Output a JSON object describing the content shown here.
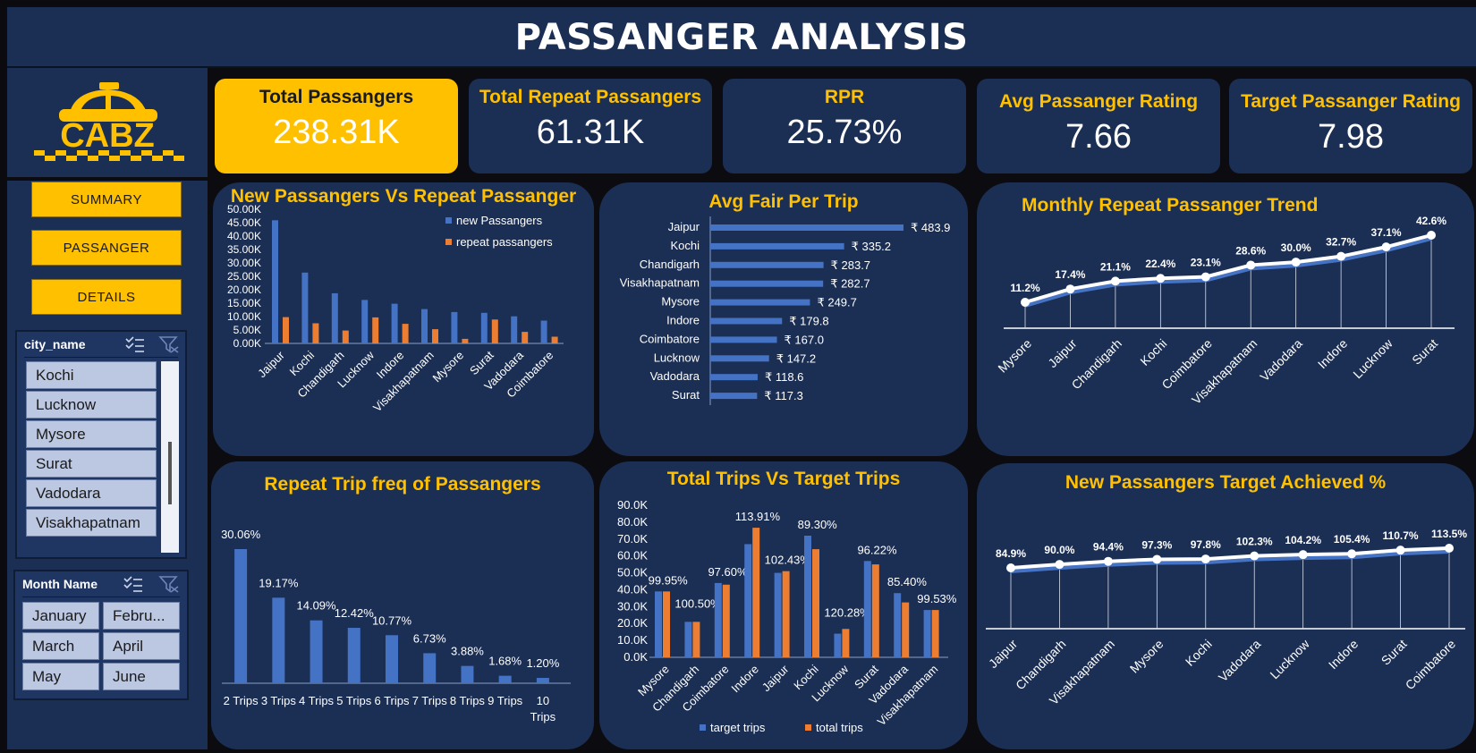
{
  "page": {
    "title": "PASSANGER ANALYSIS"
  },
  "logo": {
    "brand": "CABZ"
  },
  "nav": {
    "summary": "SUMMARY",
    "passanger": "PASSANGER",
    "details": "DETAILS"
  },
  "slicers": {
    "city": {
      "title": "city_name",
      "items": [
        "Kochi",
        "Lucknow",
        "Mysore",
        "Surat",
        "Vadodara",
        "Visakhapatnam"
      ]
    },
    "month": {
      "title": "Month Name",
      "items": [
        "January",
        "Febru...",
        "March",
        "April",
        "May",
        "June"
      ]
    }
  },
  "kpis": [
    {
      "label": "Total Passangers",
      "value": "238.31K"
    },
    {
      "label": "Total Repeat Passangers",
      "value": "61.31K"
    },
    {
      "label": "RPR",
      "value": "25.73%"
    },
    {
      "label": "Avg Passanger Rating",
      "value": "7.66"
    },
    {
      "label": "Target Passanger Rating",
      "value": "7.98"
    }
  ],
  "colors": {
    "navy": "#1b2e53",
    "gold": "#ffc000",
    "blue": "#4472c4",
    "orange": "#ed7d31"
  },
  "chart_data": [
    {
      "id": "new_vs_repeat",
      "type": "bar",
      "title": "New Passangers Vs Repeat Passanger",
      "categories": [
        "Jaipur",
        "Kochi",
        "Chandigarh",
        "Lucknow",
        "Indore",
        "Visakhapatnam",
        "Mysore",
        "Surat",
        "Vadodara",
        "Coimbatore"
      ],
      "series": [
        {
          "name": "new Passangers",
          "values": [
            45900,
            26400,
            18700,
            16200,
            14800,
            12800,
            11700,
            11400,
            10100,
            8500
          ]
        },
        {
          "name": "repeat passangers",
          "values": [
            9800,
            7500,
            4800,
            9700,
            7300,
            5300,
            1700,
            8900,
            4300,
            2500
          ]
        }
      ],
      "yticks": [
        "50.00K",
        "45.00K",
        "40.00K",
        "35.00K",
        "30.00K",
        "25.00K",
        "20.00K",
        "15.00K",
        "10.00K",
        "5.00K",
        "0.00K"
      ],
      "ylim": [
        0,
        50000
      ],
      "legend": "top-right"
    },
    {
      "id": "avg_fare",
      "type": "bar",
      "title": "Avg Fair Per Trip",
      "categories": [
        "Jaipur",
        "Kochi",
        "Chandigarh",
        "Visakhapatnam",
        "Mysore",
        "Indore",
        "Coimbatore",
        "Lucknow",
        "Vadodara",
        "Surat"
      ],
      "values": [
        483.9,
        335.2,
        283.7,
        282.7,
        249.7,
        179.8,
        167.0,
        147.2,
        118.6,
        117.3
      ],
      "labels": [
        "₹ 483.9",
        "₹ 335.2",
        "₹ 283.7",
        "₹ 282.7",
        "₹ 249.7",
        "₹ 179.8",
        "₹ 167.0",
        "₹ 147.2",
        "₹ 118.6",
        "₹ 117.3"
      ]
    },
    {
      "id": "monthly_repeat",
      "type": "line",
      "title": "Monthly Repeat Passanger Trend",
      "categories": [
        "Mysore",
        "Jaipur",
        "Chandigarh",
        "Kochi",
        "Coimbatore",
        "Visakhapatnam",
        "Vadodara",
        "Indore",
        "Lucknow",
        "Surat"
      ],
      "values": [
        11.2,
        17.4,
        21.1,
        22.4,
        23.1,
        28.6,
        30.0,
        32.7,
        37.1,
        42.6
      ],
      "labels": [
        "11.2%",
        "17.4%",
        "21.1%",
        "22.4%",
        "23.1%",
        "28.6%",
        "30.0%",
        "32.7%",
        "37.1%",
        "42.6%"
      ]
    },
    {
      "id": "repeat_freq",
      "type": "bar",
      "title": "Repeat Trip freq of Passangers",
      "categories": [
        "2 Trips",
        "3 Trips",
        "4 Trips",
        "5 Trips",
        "6 Trips",
        "7 Trips",
        "8 Trips",
        "9 Trips",
        "10 Trips"
      ],
      "values": [
        30.06,
        19.17,
        14.09,
        12.42,
        10.77,
        6.73,
        3.88,
        1.68,
        1.2
      ],
      "labels": [
        "30.06%",
        "19.17%",
        "14.09%",
        "12.42%",
        "10.77%",
        "6.73%",
        "3.88%",
        "1.68%",
        "1.20%"
      ]
    },
    {
      "id": "trips_vs_target",
      "type": "bar",
      "title": "Total Trips Vs Target Trips",
      "categories": [
        "Mysore",
        "Chandigarh",
        "Coimbatore",
        "Indore",
        "Jaipur",
        "Kochi",
        "Lucknow",
        "Surat",
        "Vadodara",
        "Visakhapatnam"
      ],
      "series": [
        {
          "name": "target trips",
          "values": [
            39000,
            21000,
            44000,
            67000,
            50000,
            72000,
            14000,
            57000,
            38000,
            28000
          ]
        },
        {
          "name": "total trips",
          "values": [
            39000,
            21000,
            43000,
            76700,
            51000,
            64000,
            16800,
            55000,
            32500,
            28000
          ]
        }
      ],
      "labels": [
        "99.95%",
        "100.50%",
        "97.60%",
        "113.91%",
        "102.43%",
        "89.30%",
        "120.28%",
        "96.22%",
        "85.40%",
        "99.53%"
      ],
      "yticks": [
        "90.0K",
        "80.0K",
        "70.0K",
        "60.0K",
        "50.0K",
        "40.0K",
        "30.0K",
        "20.0K",
        "10.0K",
        "0.0K"
      ],
      "ylim": [
        0,
        90000
      ],
      "legend": "bottom"
    },
    {
      "id": "target_achieved",
      "type": "line",
      "title": "New Passangers Target Achieved %",
      "categories": [
        "Jaipur",
        "Chandigarh",
        "Visakhapatnam",
        "Mysore",
        "Kochi",
        "Vadodara",
        "Lucknow",
        "Indore",
        "Surat",
        "Coimbatore"
      ],
      "values": [
        84.9,
        90.0,
        94.4,
        97.3,
        97.8,
        102.3,
        104.2,
        105.4,
        110.7,
        113.5
      ],
      "labels": [
        "84.9%",
        "90.0%",
        "94.4%",
        "97.3%",
        "97.8%",
        "102.3%",
        "104.2%",
        "105.4%",
        "110.7%",
        "113.5%"
      ]
    }
  ]
}
